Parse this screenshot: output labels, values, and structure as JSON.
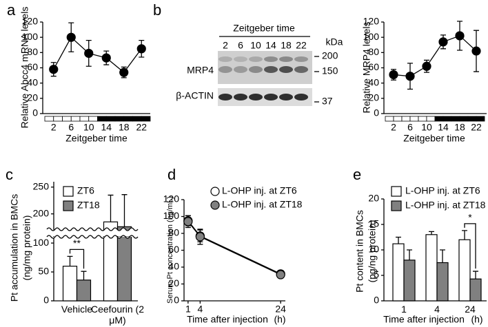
{
  "chart_data": [
    {
      "type": "line",
      "panel": "a",
      "ylabel": "Relative Abcc4 mRNA levels",
      "xlabel": "Zeitgeber time",
      "x": [
        2,
        6,
        10,
        14,
        18,
        22
      ],
      "xlim": [
        0,
        24
      ],
      "xticks": [
        2,
        6,
        10,
        14,
        18,
        22
      ],
      "ylim": [
        0,
        120
      ],
      "yticks": [
        0,
        20,
        40,
        60,
        80,
        100,
        120
      ],
      "series": [
        {
          "color": "#000000",
          "values": [
            58,
            100,
            79,
            73,
            54,
            85
          ],
          "errors": [
            9,
            19,
            17,
            9,
            7,
            11
          ]
        }
      ]
    },
    {
      "type": "line",
      "panel": "b",
      "ylabel": "Relative MRP4 levels",
      "xlabel": "Zeitgeber time",
      "x": [
        2,
        6,
        10,
        14,
        18,
        22
      ],
      "xlim": [
        0,
        24
      ],
      "xticks": [
        2,
        6,
        10,
        14,
        18,
        22
      ],
      "ylim": [
        0,
        120
      ],
      "yticks": [
        0,
        20,
        40,
        60,
        80,
        100,
        120
      ],
      "series": [
        {
          "color": "#000000",
          "values": [
            51,
            49,
            62,
            94,
            102,
            82
          ],
          "errors": [
            7,
            17,
            8,
            9,
            19,
            27
          ]
        }
      ],
      "blot": {
        "header": "Zeitgeber time",
        "lanes": [
          2,
          6,
          10,
          14,
          18,
          22
        ],
        "unit": "kDa",
        "markers": [
          200,
          150,
          37
        ],
        "rows": [
          "MRP4",
          "β-ACTIN"
        ]
      }
    },
    {
      "type": "bar",
      "panel": "c",
      "ylabel": [
        "Pt accumulation in BMCs",
        "(ng/mg protein)"
      ],
      "categories": [
        "Vehicle",
        "Ceefourin (2 μM)"
      ],
      "ylim": [
        0,
        260
      ],
      "axis_break": [
        112,
        170
      ],
      "yticks": [
        0,
        50,
        100,
        200,
        250
      ],
      "series": [
        {
          "name": "ZT6",
          "color": "#ffffff",
          "values": [
            60,
            185
          ],
          "errors": [
            17,
            50
          ]
        },
        {
          "name": "ZT18",
          "color": "#808080",
          "values": [
            36,
            176
          ],
          "errors": [
            15,
            60
          ]
        }
      ],
      "significance": [
        {
          "label": "**",
          "category": 0
        }
      ]
    },
    {
      "type": "line",
      "panel": "d",
      "ylabel": "Serum Pt concentration (ng/mL)",
      "xlabel": "Time after injection",
      "xunit": "(h)",
      "x": [
        1,
        4,
        24
      ],
      "xlim": [
        0,
        25
      ],
      "xticks": [
        1,
        4,
        24
      ],
      "ylim": [
        0,
        120
      ],
      "yticks": [
        0,
        20,
        40,
        60,
        80,
        100,
        120
      ],
      "series": [
        {
          "name": "L-OHP inj. at ZT6",
          "color": "#ffffff",
          "values": [
            95,
            77,
            32
          ],
          "errors": [
            6,
            7,
            4
          ]
        },
        {
          "name": "L-OHP inj. at ZT18",
          "color": "#808080",
          "values": [
            94,
            76,
            31
          ],
          "errors": [
            7,
            9,
            3
          ]
        }
      ]
    },
    {
      "type": "bar",
      "panel": "e",
      "ylabel": [
        "Pt content in BMCs",
        "(pg/ng protein)"
      ],
      "xlabel": "Time after injection",
      "xunit": "(h)",
      "categories": [
        "1",
        "4",
        "24"
      ],
      "ylim": [
        0,
        20
      ],
      "yticks": [
        0,
        5,
        10,
        15,
        20
      ],
      "series": [
        {
          "name": "L-OHP inj. at ZT6",
          "color": "#ffffff",
          "values": [
            11.2,
            13,
            12
          ],
          "errors": [
            1.3,
            0.6,
            1.8
          ]
        },
        {
          "name": "L-OHP inj. at ZT18",
          "color": "#808080",
          "values": [
            8,
            7.5,
            4.3
          ],
          "errors": [
            2,
            2.5,
            1.5
          ]
        }
      ],
      "significance": [
        {
          "label": "*",
          "category": 2
        }
      ]
    }
  ]
}
